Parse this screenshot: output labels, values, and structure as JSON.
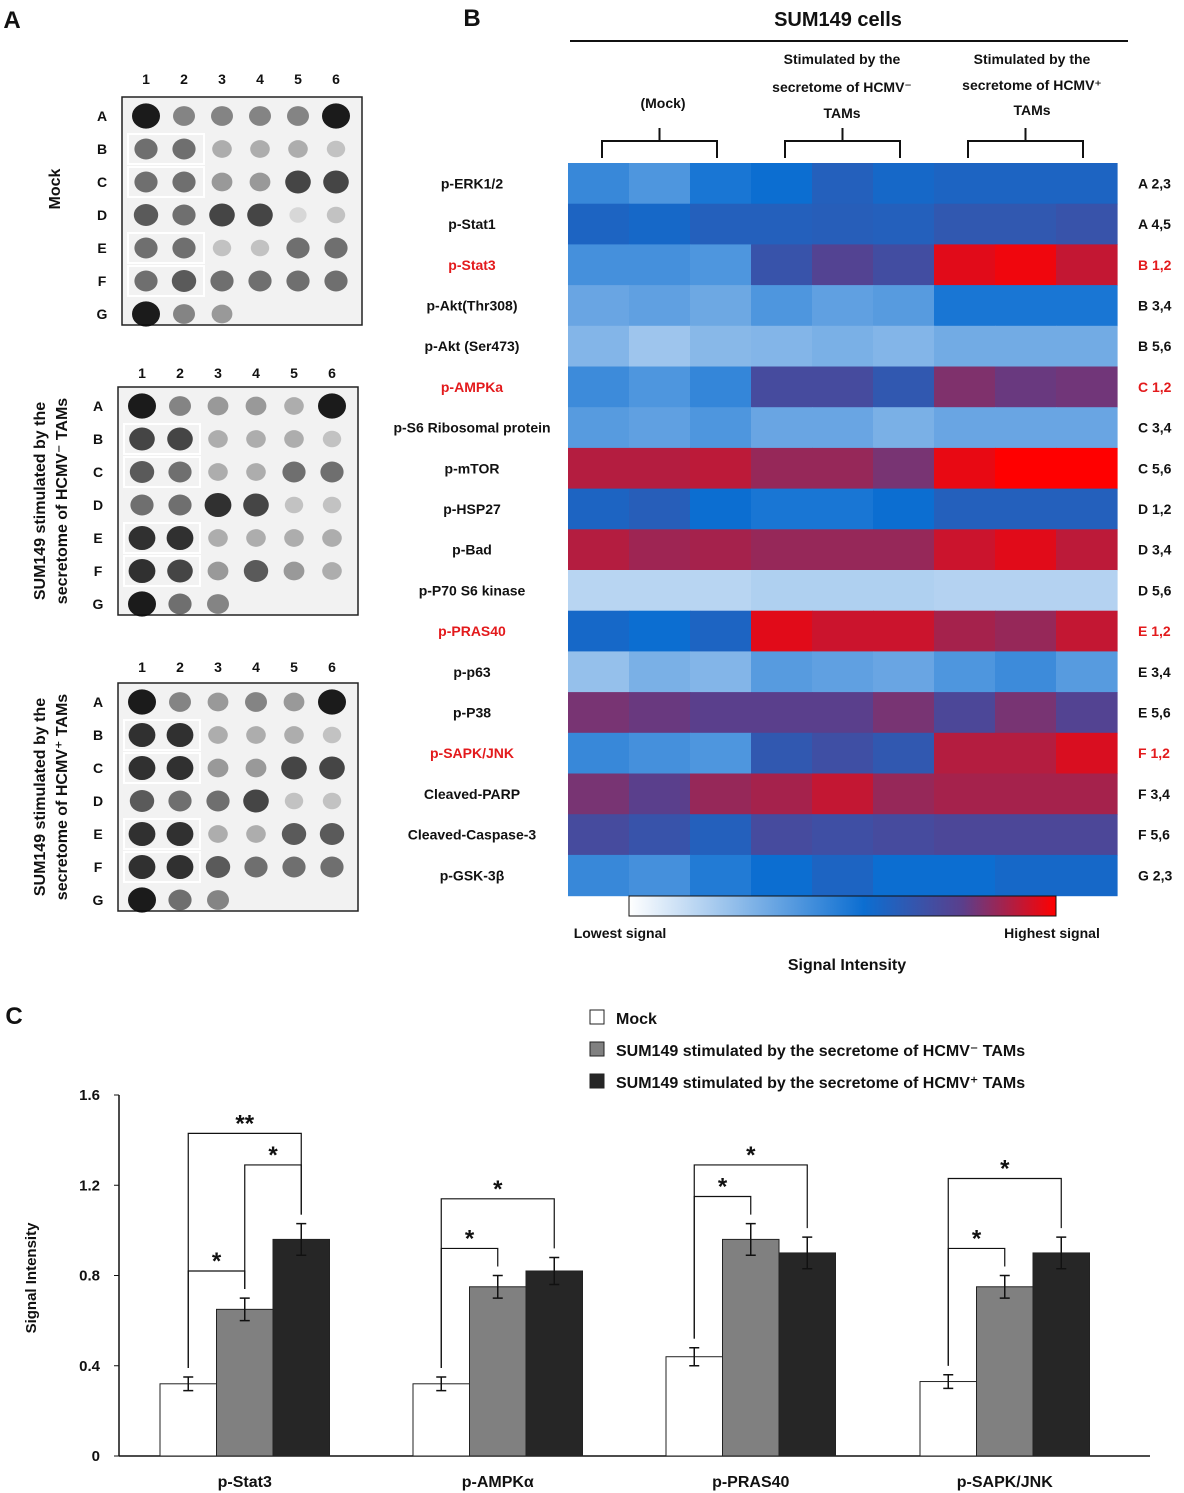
{
  "panels": {
    "a": "A",
    "b": "B",
    "c": "C"
  },
  "blots": [
    {
      "title_lines": [
        "Mock"
      ]
    },
    {
      "title_lines": [
        "SUM149 stimulated by the",
        "secretome of HCMV⁻ TAMs"
      ]
    },
    {
      "title_lines": [
        "SUM149 stimulated by the",
        "secretome of HCMV⁺ TAMs"
      ]
    }
  ],
  "blot_cols": [
    "1",
    "2",
    "3",
    "4",
    "5",
    "6"
  ],
  "blot_rows": [
    "A",
    "B",
    "C",
    "D",
    "E",
    "F",
    "G"
  ],
  "heatmap": {
    "title": "SUM149 cells",
    "groups": [
      {
        "lines": [
          "(Mock)"
        ]
      },
      {
        "lines": [
          "Stimulated by the",
          "secretome of HCMV⁻",
          "TAMs"
        ]
      },
      {
        "lines": [
          "Stimulated by the",
          "secretome of HCMV⁺",
          "TAMs"
        ]
      }
    ],
    "rows": [
      {
        "label": "p-ERK1/2",
        "pos": "A 2,3",
        "highlight": false,
        "values": [
          0.45,
          0.4,
          0.52,
          0.55,
          0.62,
          0.58,
          0.6,
          0.6,
          0.6
        ]
      },
      {
        "label": "p-Stat1",
        "pos": "A 4,5",
        "highlight": false,
        "values": [
          0.6,
          0.58,
          0.62,
          0.62,
          0.63,
          0.62,
          0.66,
          0.66,
          0.68
        ]
      },
      {
        "label": "p-Stat3",
        "pos": "B 1,2",
        "highlight": true,
        "values": [
          0.42,
          0.42,
          0.4,
          0.68,
          0.76,
          0.71,
          0.96,
          0.98,
          0.92
        ]
      },
      {
        "label": "p-Akt(Thr308)",
        "pos": "B 3,4",
        "highlight": false,
        "values": [
          0.34,
          0.36,
          0.33,
          0.4,
          0.36,
          0.38,
          0.52,
          0.52,
          0.52
        ]
      },
      {
        "label": "p-Akt (Ser473)",
        "pos": "B 5,6",
        "highlight": false,
        "values": [
          0.28,
          0.22,
          0.27,
          0.28,
          0.3,
          0.28,
          0.32,
          0.32,
          0.32
        ]
      },
      {
        "label": "p-AMPKa",
        "pos": "C 1,2",
        "highlight": true,
        "values": [
          0.44,
          0.4,
          0.46,
          0.72,
          0.72,
          0.66,
          0.83,
          0.8,
          0.81
        ]
      },
      {
        "label": "p-S6 Ribosomal protein",
        "pos": "C 3,4",
        "highlight": false,
        "values": [
          0.38,
          0.36,
          0.4,
          0.34,
          0.34,
          0.3,
          0.34,
          0.34,
          0.34
        ]
      },
      {
        "label": "p-mTOR",
        "pos": "C 5,6",
        "highlight": false,
        "values": [
          0.9,
          0.9,
          0.91,
          0.86,
          0.86,
          0.82,
          0.97,
          1.0,
          1.0
        ]
      },
      {
        "label": "p-HSP27",
        "pos": "D 1,2",
        "highlight": false,
        "values": [
          0.6,
          0.63,
          0.55,
          0.52,
          0.52,
          0.55,
          0.62,
          0.62,
          0.62
        ]
      },
      {
        "label": "p-Bad",
        "pos": "D 3,4",
        "highlight": false,
        "values": [
          0.9,
          0.87,
          0.88,
          0.86,
          0.86,
          0.86,
          0.93,
          0.96,
          0.91
        ]
      },
      {
        "label": "p-P70 S6 kinase",
        "pos": "D 5,6",
        "highlight": false,
        "values": [
          0.16,
          0.16,
          0.16,
          0.18,
          0.18,
          0.18,
          0.17,
          0.17,
          0.17
        ]
      },
      {
        "label": "p-PRAS40",
        "pos": "E 1,2",
        "highlight": true,
        "values": [
          0.58,
          0.55,
          0.6,
          0.96,
          0.93,
          0.93,
          0.88,
          0.86,
          0.92
        ]
      },
      {
        "label": "p-p63",
        "pos": "E 3,4",
        "highlight": false,
        "values": [
          0.24,
          0.3,
          0.28,
          0.38,
          0.36,
          0.34,
          0.4,
          0.44,
          0.38
        ]
      },
      {
        "label": "p-P38",
        "pos": "E 5,6",
        "highlight": false,
        "values": [
          0.82,
          0.8,
          0.78,
          0.78,
          0.78,
          0.82,
          0.74,
          0.82,
          0.76
        ]
      },
      {
        "label": "p-SAPK/JNK",
        "pos": "F 1,2",
        "highlight": true,
        "values": [
          0.45,
          0.42,
          0.4,
          0.66,
          0.7,
          0.66,
          0.9,
          0.9,
          0.95
        ]
      },
      {
        "label": "Cleaved-PARP",
        "pos": "F 3,4",
        "highlight": false,
        "values": [
          0.82,
          0.78,
          0.86,
          0.88,
          0.92,
          0.86,
          0.88,
          0.88,
          0.88
        ]
      },
      {
        "label": "Cleaved-Caspase-3",
        "pos": "F 5,6",
        "highlight": false,
        "values": [
          0.72,
          0.68,
          0.62,
          0.72,
          0.7,
          0.72,
          0.74,
          0.74,
          0.74
        ]
      },
      {
        "label": "p-GSK-3β",
        "pos": "G 2,3",
        "highlight": false,
        "values": [
          0.45,
          0.42,
          0.5,
          0.55,
          0.6,
          0.55,
          0.55,
          0.58,
          0.58
        ]
      }
    ],
    "colorbar": {
      "low": "Lowest signal",
      "high": "Highest signal",
      "title": "Signal Intensity"
    },
    "colors": {
      "low": "#ffffff",
      "mid": "#0c6ed1",
      "mid2": "#5a3f8c",
      "high": "#ff0000"
    }
  },
  "chart_data": {
    "type": "bar",
    "title": "",
    "xlabel": "",
    "ylabel": "Signal Intensity",
    "ylim": [
      0,
      1.6
    ],
    "yticks": [
      "0",
      "0.4",
      "0.8",
      "1.2",
      "1.6"
    ],
    "categories": [
      "p-Stat3",
      "p-AMPKα",
      "p-PRAS40",
      "p-SAPK/JNK"
    ],
    "series": [
      {
        "name": "Mock",
        "color": "#ffffff",
        "values": [
          0.32,
          0.32,
          0.44,
          0.33
        ],
        "errors": [
          0.03,
          0.03,
          0.04,
          0.03
        ]
      },
      {
        "name": "SUM149 stimulated by the secretome of HCMV⁻ TAMs",
        "color": "#808080",
        "values": [
          0.65,
          0.75,
          0.96,
          0.75
        ],
        "errors": [
          0.05,
          0.05,
          0.07,
          0.05
        ]
      },
      {
        "name": "SUM149 stimulated by the secretome of HCMV⁺ TAMs",
        "color": "#262626",
        "values": [
          0.96,
          0.82,
          0.9,
          0.9
        ],
        "errors": [
          0.07,
          0.06,
          0.07,
          0.07
        ]
      }
    ],
    "significance": [
      {
        "group": 0,
        "from": 0,
        "to": 1,
        "label": "*"
      },
      {
        "group": 0,
        "from": 1,
        "to": 2,
        "label": "*"
      },
      {
        "group": 0,
        "from": 0,
        "to": 2,
        "label": "**"
      },
      {
        "group": 1,
        "from": 0,
        "to": 1,
        "label": "*"
      },
      {
        "group": 1,
        "from": 0,
        "to": 2,
        "label": "*"
      },
      {
        "group": 2,
        "from": 0,
        "to": 1,
        "label": "*"
      },
      {
        "group": 2,
        "from": 0,
        "to": 2,
        "label": "*"
      },
      {
        "group": 3,
        "from": 0,
        "to": 1,
        "label": "*"
      },
      {
        "group": 3,
        "from": 0,
        "to": 2,
        "label": "*"
      }
    ],
    "legend_position": "top-right"
  }
}
